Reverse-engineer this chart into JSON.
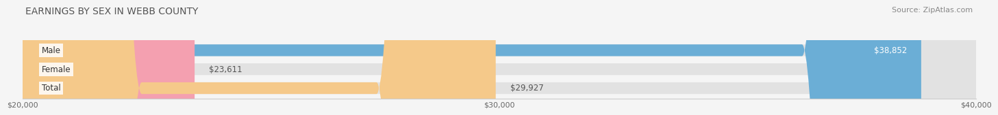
{
  "title": "EARNINGS BY SEX IN WEBB COUNTY",
  "source": "Source: ZipAtlas.com",
  "categories": [
    "Male",
    "Female",
    "Total"
  ],
  "values": [
    38852,
    23611,
    29927
  ],
  "bar_colors": [
    "#6baed6",
    "#f4a0b0",
    "#f5c98a"
  ],
  "value_labels": [
    "$38,852",
    "$23,611",
    "$29,927"
  ],
  "xlim": [
    20000,
    40000
  ],
  "xticks": [
    20000,
    30000,
    40000
  ],
  "xtick_labels": [
    "$20,000",
    "$30,000",
    "$40,000"
  ],
  "title_fontsize": 10,
  "source_fontsize": 8,
  "bar_label_fontsize": 8.5,
  "value_label_fontsize": 8.5,
  "background_color": "#f5f5f5"
}
